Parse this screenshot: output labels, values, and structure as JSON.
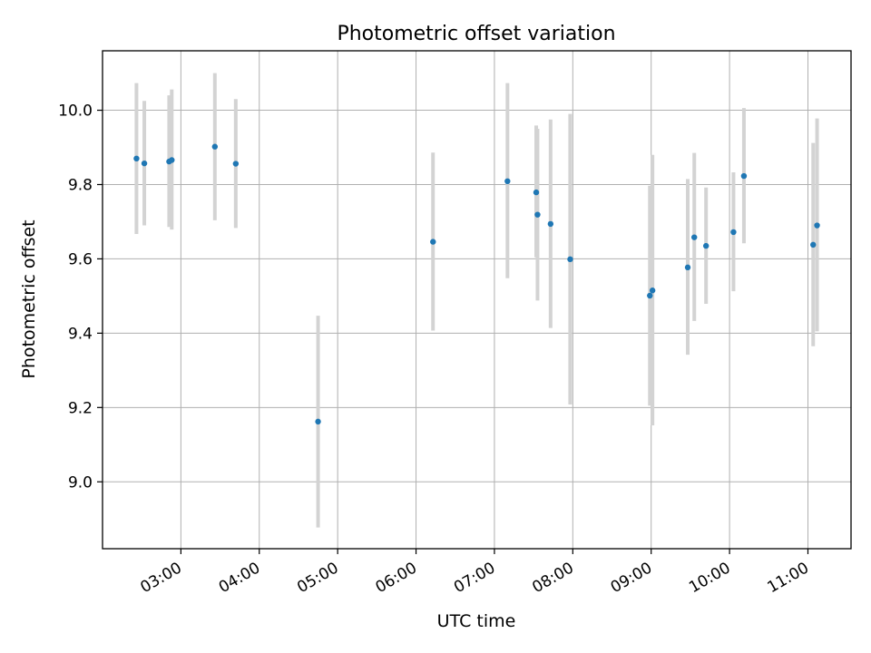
{
  "chart_data": {
    "type": "scatter",
    "title": "Photometric offset variation",
    "xlabel": "UTC time",
    "ylabel": "Photometric offset",
    "x_tick_labels": [
      "03:00",
      "04:00",
      "05:00",
      "06:00",
      "07:00",
      "08:00",
      "09:00",
      "10:00",
      "11:00"
    ],
    "y_tick_labels": [
      "9.0",
      "9.2",
      "9.4",
      "9.6",
      "9.8",
      "10.0"
    ],
    "x_ticks_hours": [
      3,
      4,
      5,
      6,
      7,
      8,
      9,
      10,
      11
    ],
    "y_ticks": [
      9.0,
      9.2,
      9.4,
      9.6,
      9.8,
      10.0
    ],
    "xlim_hours": [
      2.0,
      11.55
    ],
    "ylim": [
      8.82,
      10.16
    ],
    "grid": true,
    "x_is_time_of_day": true,
    "colors": {
      "marker": "#1f77b4",
      "errorbar": "#d3d3d3",
      "grid": "#b0b0b0"
    },
    "points": [
      {
        "time": "02:26",
        "y": 9.87,
        "low": 9.667,
        "high": 10.073
      },
      {
        "time": "02:32",
        "y": 9.857,
        "low": 9.69,
        "high": 10.025
      },
      {
        "time": "02:51",
        "y": 9.862,
        "low": 9.686,
        "high": 10.04
      },
      {
        "time": "02:53",
        "y": 9.866,
        "low": 9.679,
        "high": 10.056
      },
      {
        "time": "03:26",
        "y": 9.902,
        "low": 9.704,
        "high": 10.1
      },
      {
        "time": "03:42",
        "y": 9.856,
        "low": 9.683,
        "high": 10.03
      },
      {
        "time": "04:45",
        "y": 9.162,
        "low": 8.877,
        "high": 9.447
      },
      {
        "time": "06:13",
        "y": 9.646,
        "low": 9.407,
        "high": 9.886
      },
      {
        "time": "07:10",
        "y": 9.809,
        "low": 9.548,
        "high": 10.073
      },
      {
        "time": "07:32",
        "y": 9.779,
        "low": 9.604,
        "high": 9.959
      },
      {
        "time": "07:33",
        "y": 9.719,
        "low": 9.488,
        "high": 9.95
      },
      {
        "time": "07:43",
        "y": 9.694,
        "low": 9.414,
        "high": 9.975
      },
      {
        "time": "07:58",
        "y": 9.599,
        "low": 9.208,
        "high": 9.99
      },
      {
        "time": "08:59",
        "y": 9.501,
        "low": 9.205,
        "high": 9.797
      },
      {
        "time": "09:01",
        "y": 9.515,
        "low": 9.152,
        "high": 9.88
      },
      {
        "time": "09:28",
        "y": 9.577,
        "low": 9.342,
        "high": 9.815
      },
      {
        "time": "09:33",
        "y": 9.658,
        "low": 9.433,
        "high": 9.885
      },
      {
        "time": "09:42",
        "y": 9.635,
        "low": 9.479,
        "high": 9.792
      },
      {
        "time": "10:03",
        "y": 9.672,
        "low": 9.513,
        "high": 9.833
      },
      {
        "time": "10:11",
        "y": 9.823,
        "low": 9.642,
        "high": 10.006
      },
      {
        "time": "11:04",
        "y": 9.638,
        "low": 9.365,
        "high": 9.912
      },
      {
        "time": "11:07",
        "y": 9.69,
        "low": 9.405,
        "high": 9.978
      }
    ]
  }
}
